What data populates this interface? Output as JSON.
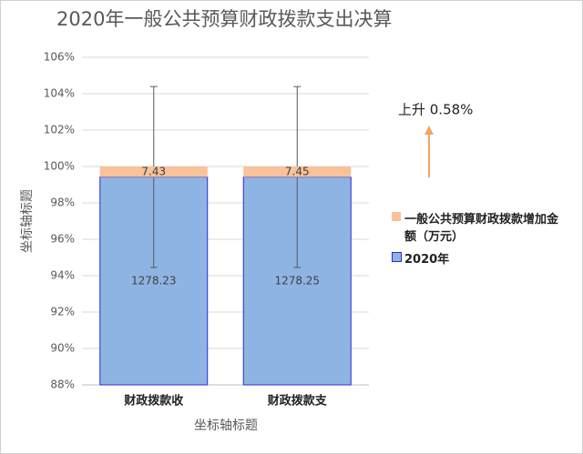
{
  "chart_data": {
    "type": "bar100",
    "title": "2020年一般公共预算财政拨款支出决算",
    "x_label": "坐标轴标题",
    "y_label": "坐标轴标题",
    "annotation": "上升 0.58%",
    "categories": [
      "财政拨款收",
      "财政拨款支"
    ],
    "series": [
      {
        "name": "2020年",
        "color": "#8eb4e3",
        "values": [
          1278.23,
          1278.25
        ],
        "error_percent": [
          5,
          5
        ]
      },
      {
        "name": "一般公共预算财政拨款增加金额（万元）",
        "color": "#f8c29a",
        "values": [
          7.43,
          7.45
        ]
      }
    ],
    "ylim": [
      88,
      106
    ],
    "yticks": [
      {
        "value": 88,
        "label": "88%"
      },
      {
        "value": 90,
        "label": "90%"
      },
      {
        "value": 92,
        "label": "92%"
      },
      {
        "value": 94,
        "label": "94%"
      },
      {
        "value": 96,
        "label": "96%"
      },
      {
        "value": 98,
        "label": "98%"
      },
      {
        "value": 100,
        "label": "100%"
      },
      {
        "value": 102,
        "label": "102%"
      },
      {
        "value": 104,
        "label": "104%"
      },
      {
        "value": 106,
        "label": "106%"
      }
    ],
    "grid": true,
    "legend": "right"
  }
}
